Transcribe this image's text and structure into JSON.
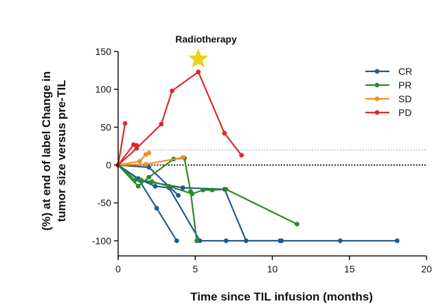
{
  "chart_data": {
    "type": "line",
    "title": "",
    "xlabel": "Time since TIL infusion (months)",
    "ylabel_line1": "(%) at end of label Change in",
    "ylabel_line2": "tumor size versus pre-TIL",
    "xlim": [
      0,
      20
    ],
    "ylim": [
      -120,
      150
    ],
    "x_ticks": [
      0,
      5,
      10,
      15,
      20
    ],
    "y_ticks": [
      150,
      100,
      50,
      0,
      -50,
      -100
    ],
    "reference_lines": [
      {
        "y": 20,
        "style": "dotted",
        "color": "#c8c8c8"
      },
      {
        "y": 0,
        "style": "dotted",
        "color": "#111111"
      }
    ],
    "annotation": {
      "text": "Radiotherapy",
      "marker": "star",
      "x": 5.2,
      "y": 140,
      "color": "#e8d21a"
    },
    "legend_position": "top-right",
    "groups": [
      {
        "name": "CR",
        "color": "#1f5a8e",
        "series": [
          {
            "x": [
              0,
              2.0,
              3.9
            ],
            "y": [
              0,
              -3,
              -40
            ]
          },
          {
            "x": [
              0,
              1.3,
              2.5,
              3.8
            ],
            "y": [
              0,
              -18,
              -57,
              -100
            ]
          },
          {
            "x": [
              0,
              1.3,
              2.4,
              3.3,
              5.3,
              7.0,
              10.6,
              14.4,
              18.1
            ],
            "y": [
              0,
              -18,
              -28,
              -30,
              -100,
              -100,
              -100,
              -100,
              -100
            ]
          },
          {
            "x": [
              0,
              1.4,
              4.2,
              6.9,
              8.3,
              10.5
            ],
            "y": [
              0,
              -20,
              -30,
              -32,
              -100,
              -100
            ]
          }
        ]
      },
      {
        "name": "PR",
        "color": "#2a8a2a",
        "series": [
          {
            "x": [
              0,
              1.3,
              2.0,
              3.6,
              4.3,
              4.7,
              5.1
            ],
            "y": [
              0,
              -28,
              -16,
              8,
              9,
              -35,
              -100
            ]
          },
          {
            "x": [
              0,
              1.1,
              1.5,
              2.2,
              3.3,
              4.8,
              5.5,
              6.1,
              7.0,
              11.6
            ],
            "y": [
              0,
              -20,
              -20,
              -22,
              -28,
              -38,
              -33,
              -33,
              -32,
              -78
            ]
          }
        ]
      },
      {
        "name": "SD",
        "color": "#f0901f",
        "series": [
          {
            "x": [
              0,
              1.4,
              1.8,
              2.0
            ],
            "y": [
              0,
              5,
              14,
              16
            ]
          },
          {
            "x": [
              0,
              1.8,
              4.2
            ],
            "y": [
              0,
              1,
              10
            ]
          }
        ]
      },
      {
        "name": "PD",
        "color": "#d92a2a",
        "series": [
          {
            "x": [
              0,
              0.45
            ],
            "y": [
              0,
              55
            ]
          },
          {
            "x": [
              0,
              1.0,
              1.2
            ],
            "y": [
              0,
              27,
              26
            ]
          },
          {
            "x": [
              0,
              1.2,
              2.8,
              3.5,
              5.2,
              6.9,
              8.0
            ],
            "y": [
              0,
              22,
              54,
              98,
              123,
              42,
              13
            ]
          }
        ]
      }
    ]
  }
}
